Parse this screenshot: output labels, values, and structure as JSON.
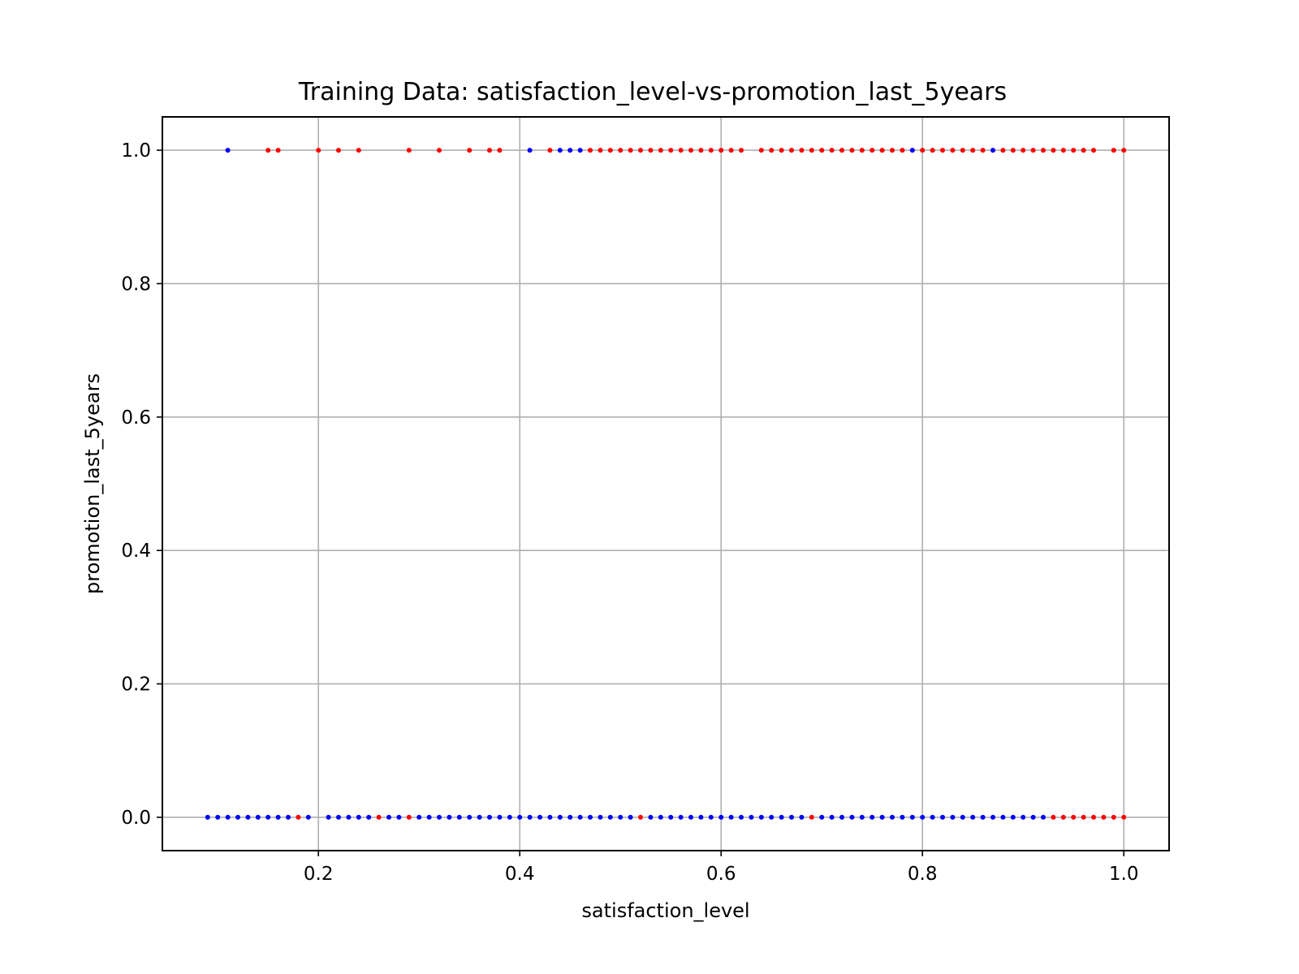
{
  "chart_data": {
    "type": "scatter",
    "title": "Training Data: satisfaction_level-vs-promotion_last_5years",
    "xlabel": "satisfaction_level",
    "ylabel": "promotion_last_5years",
    "xlim": [
      0.045,
      1.045
    ],
    "ylim": [
      -0.05,
      1.05
    ],
    "xticks": [
      0.2,
      0.4,
      0.6,
      0.8,
      1.0
    ],
    "xtick_labels": [
      "0.2",
      "0.4",
      "0.6",
      "0.8",
      "1.0"
    ],
    "yticks": [
      0.0,
      0.2,
      0.4,
      0.6,
      0.8,
      1.0
    ],
    "ytick_labels": [
      "0.0",
      "0.2",
      "0.4",
      "0.6",
      "0.8",
      "1.0"
    ],
    "grid": true,
    "colors": {
      "red": "#ff0000",
      "blue": "#0000ff",
      "grid": "#b0b0b0"
    },
    "series": [
      {
        "color": "#0000ff",
        "points": [
          [
            0.09,
            0
          ],
          [
            0.1,
            0
          ],
          [
            0.11,
            0
          ],
          [
            0.12,
            0
          ],
          [
            0.13,
            0
          ],
          [
            0.14,
            0
          ],
          [
            0.15,
            0
          ],
          [
            0.16,
            0
          ],
          [
            0.17,
            0
          ],
          [
            0.19,
            0
          ],
          [
            0.21,
            0
          ],
          [
            0.22,
            0
          ],
          [
            0.23,
            0
          ],
          [
            0.24,
            0
          ],
          [
            0.25,
            0
          ],
          [
            0.27,
            0
          ],
          [
            0.28,
            0
          ],
          [
            0.3,
            0
          ],
          [
            0.31,
            0
          ],
          [
            0.32,
            0
          ],
          [
            0.33,
            0
          ],
          [
            0.34,
            0
          ],
          [
            0.35,
            0
          ],
          [
            0.36,
            0
          ],
          [
            0.37,
            0
          ],
          [
            0.38,
            0
          ],
          [
            0.39,
            0
          ],
          [
            0.4,
            0
          ],
          [
            0.41,
            0
          ],
          [
            0.42,
            0
          ],
          [
            0.43,
            0
          ],
          [
            0.44,
            0
          ],
          [
            0.45,
            0
          ],
          [
            0.46,
            0
          ],
          [
            0.47,
            0
          ],
          [
            0.48,
            0
          ],
          [
            0.49,
            0
          ],
          [
            0.5,
            0
          ],
          [
            0.51,
            0
          ],
          [
            0.53,
            0
          ],
          [
            0.54,
            0
          ],
          [
            0.55,
            0
          ],
          [
            0.56,
            0
          ],
          [
            0.57,
            0
          ],
          [
            0.58,
            0
          ],
          [
            0.59,
            0
          ],
          [
            0.6,
            0
          ],
          [
            0.61,
            0
          ],
          [
            0.62,
            0
          ],
          [
            0.63,
            0
          ],
          [
            0.64,
            0
          ],
          [
            0.65,
            0
          ],
          [
            0.66,
            0
          ],
          [
            0.67,
            0
          ],
          [
            0.68,
            0
          ],
          [
            0.7,
            0
          ],
          [
            0.71,
            0
          ],
          [
            0.72,
            0
          ],
          [
            0.73,
            0
          ],
          [
            0.74,
            0
          ],
          [
            0.75,
            0
          ],
          [
            0.76,
            0
          ],
          [
            0.77,
            0
          ],
          [
            0.78,
            0
          ],
          [
            0.79,
            0
          ],
          [
            0.8,
            0
          ],
          [
            0.81,
            0
          ],
          [
            0.82,
            0
          ],
          [
            0.83,
            0
          ],
          [
            0.84,
            0
          ],
          [
            0.85,
            0
          ],
          [
            0.86,
            0
          ],
          [
            0.87,
            0
          ],
          [
            0.88,
            0
          ],
          [
            0.89,
            0
          ],
          [
            0.9,
            0
          ],
          [
            0.91,
            0
          ],
          [
            0.92,
            0
          ],
          [
            0.11,
            1
          ],
          [
            0.41,
            1
          ],
          [
            0.44,
            1
          ],
          [
            0.45,
            1
          ],
          [
            0.46,
            1
          ],
          [
            0.79,
            1
          ],
          [
            0.87,
            1
          ]
        ]
      },
      {
        "color": "#ff0000",
        "points": [
          [
            0.18,
            0
          ],
          [
            0.26,
            0
          ],
          [
            0.29,
            0
          ],
          [
            0.52,
            0
          ],
          [
            0.69,
            0
          ],
          [
            0.93,
            0
          ],
          [
            0.94,
            0
          ],
          [
            0.95,
            0
          ],
          [
            0.96,
            0
          ],
          [
            0.97,
            0
          ],
          [
            0.98,
            0
          ],
          [
            0.99,
            0
          ],
          [
            1.0,
            0
          ],
          [
            0.15,
            1
          ],
          [
            0.16,
            1
          ],
          [
            0.2,
            1
          ],
          [
            0.22,
            1
          ],
          [
            0.24,
            1
          ],
          [
            0.29,
            1
          ],
          [
            0.32,
            1
          ],
          [
            0.35,
            1
          ],
          [
            0.37,
            1
          ],
          [
            0.38,
            1
          ],
          [
            0.43,
            1
          ],
          [
            0.47,
            1
          ],
          [
            0.48,
            1
          ],
          [
            0.49,
            1
          ],
          [
            0.5,
            1
          ],
          [
            0.51,
            1
          ],
          [
            0.52,
            1
          ],
          [
            0.53,
            1
          ],
          [
            0.54,
            1
          ],
          [
            0.55,
            1
          ],
          [
            0.56,
            1
          ],
          [
            0.57,
            1
          ],
          [
            0.58,
            1
          ],
          [
            0.59,
            1
          ],
          [
            0.6,
            1
          ],
          [
            0.61,
            1
          ],
          [
            0.62,
            1
          ],
          [
            0.64,
            1
          ],
          [
            0.65,
            1
          ],
          [
            0.66,
            1
          ],
          [
            0.67,
            1
          ],
          [
            0.68,
            1
          ],
          [
            0.69,
            1
          ],
          [
            0.7,
            1
          ],
          [
            0.71,
            1
          ],
          [
            0.72,
            1
          ],
          [
            0.73,
            1
          ],
          [
            0.74,
            1
          ],
          [
            0.75,
            1
          ],
          [
            0.76,
            1
          ],
          [
            0.77,
            1
          ],
          [
            0.78,
            1
          ],
          [
            0.8,
            1
          ],
          [
            0.81,
            1
          ],
          [
            0.82,
            1
          ],
          [
            0.83,
            1
          ],
          [
            0.84,
            1
          ],
          [
            0.85,
            1
          ],
          [
            0.86,
            1
          ],
          [
            0.88,
            1
          ],
          [
            0.89,
            1
          ],
          [
            0.9,
            1
          ],
          [
            0.91,
            1
          ],
          [
            0.92,
            1
          ],
          [
            0.93,
            1
          ],
          [
            0.94,
            1
          ],
          [
            0.95,
            1
          ],
          [
            0.96,
            1
          ],
          [
            0.97,
            1
          ],
          [
            0.99,
            1
          ],
          [
            1.0,
            1
          ]
        ]
      }
    ]
  }
}
